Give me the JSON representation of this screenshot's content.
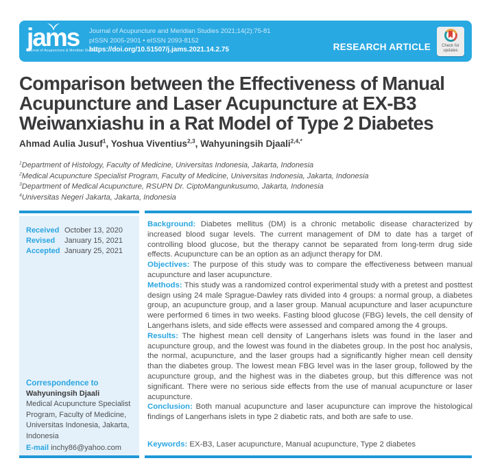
{
  "colors": {
    "banner": "#29a9e2",
    "bar": "#1f98d6",
    "blue": "#2aa5e1",
    "sidebarBg": "#e4f1fa",
    "ink": "#3a3a3c",
    "body": "#4e4f52",
    "badgeBg": "#ededed"
  },
  "header": {
    "logo_text": "jams",
    "logo_tagline": "Journal of Acupuncture & Meridian Studies",
    "citation_line": "Journal of Acupuncture and Meridian Studies 2021;14(2):75-81",
    "issn_line": "pISSN 2005-2901 • eISSN 2093-8152",
    "doi": "https://doi.org/10.51507/j.jams.2021.14.2.75",
    "article_type": "RESEARCH ARTICLE",
    "check_updates_line1": "Check for",
    "check_updates_line2": "updates"
  },
  "article": {
    "title": "Comparison between the Effectiveness of Manual Acupuncture and Laser Acupuncture at EX-B3 Weiwanxiashu in a Rat Model of Type 2 Diabetes",
    "authors": [
      {
        "name": "Ahmad Aulia Jusuf",
        "sup": "1"
      },
      {
        "name": "Yoshua Viventius",
        "sup": "2,3"
      },
      {
        "name": "Wahyuningsih Djaali",
        "sup": "2,4,*"
      }
    ],
    "affiliations": [
      {
        "sup": "1",
        "text": "Department of Histology, Faculty of Medicine, Universitas Indonesia, Jakarta, Indonesia"
      },
      {
        "sup": "2",
        "text": "Medical Acupuncture Specialist Program, Faculty of Medicine, Universitas Indonesia, Jakarta, Indonesia"
      },
      {
        "sup": "3",
        "text": "Department of Medical Acupuncture, RSUPN Dr. CiptoMangunkusumo, Jakarta, Indonesia"
      },
      {
        "sup": "4",
        "text": "Universitas Negeri Jakarta, Jakarta, Indonesia"
      }
    ]
  },
  "sidebar": {
    "history": [
      {
        "label": "Received",
        "date": "October 13, 2020"
      },
      {
        "label": "Revised",
        "date": "January 15, 2021"
      },
      {
        "label": "Accepted",
        "date": "January 25, 2021"
      }
    ],
    "correspondence": {
      "heading": "Correspondence to",
      "name": "Wahyuningsih Djaali",
      "address": "Medical Acupuncture Specialist Program, Faculty of Medicine, Universitas Indonesia, Jakarta, Indonesia",
      "email_label": "E-mail",
      "email": "inchy86@yahoo.com"
    }
  },
  "abstract": {
    "sections": [
      {
        "label": "Background:",
        "text": "Diabetes mellitus (DM) is a chronic metabolic disease characterized by increased blood sugar levels. The current management of DM to date has a target of controlling blood glucose, but the therapy cannot be separated from long-term drug side effects. Acupuncture can be an option as an adjunct therapy for DM."
      },
      {
        "label": "Objectives:",
        "text": "The purpose of this study was to compare the effectiveness between manual acupuncture and laser acupuncture."
      },
      {
        "label": "Methods:",
        "text": "This study was a randomized control experimental study with a pretest and posttest design using 24 male Sprague-Dawley rats divided into 4 groups: a normal group, a diabetes group, an acupuncture group, and a laser group. Manual acupuncture and laser acupuncture were performed 6 times in two weeks. Fasting blood glucose (FBG) levels, the cell density of Langerhans islets, and side effects were assessed and compared among the 4 groups."
      },
      {
        "label": "Results:",
        "text": "The highest mean cell density of Langerhans islets was found in the laser and acupuncture group, and the lowest was found in the diabetes group. In the post hoc analysis, the normal, acupuncture, and the laser groups had a significantly higher mean cell density than the diabetes group. The lowest mean FBG level was in the laser group, followed by the acupuncture group, and the highest was in the diabetes group, but this difference was not significant. There were no serious side effects from the use of manual acupuncture or laser acupuncture."
      },
      {
        "label": "Conclusion:",
        "text": "Both manual acupuncture and laser acupuncture can improve the histological findings of Langerhans islets in type 2 diabetic rats, and both are safe to use."
      }
    ],
    "keywords_label": "Keywords:",
    "keywords": "EX-B3, Laser acupuncture, Manual acupuncture, Type 2 diabetes"
  }
}
